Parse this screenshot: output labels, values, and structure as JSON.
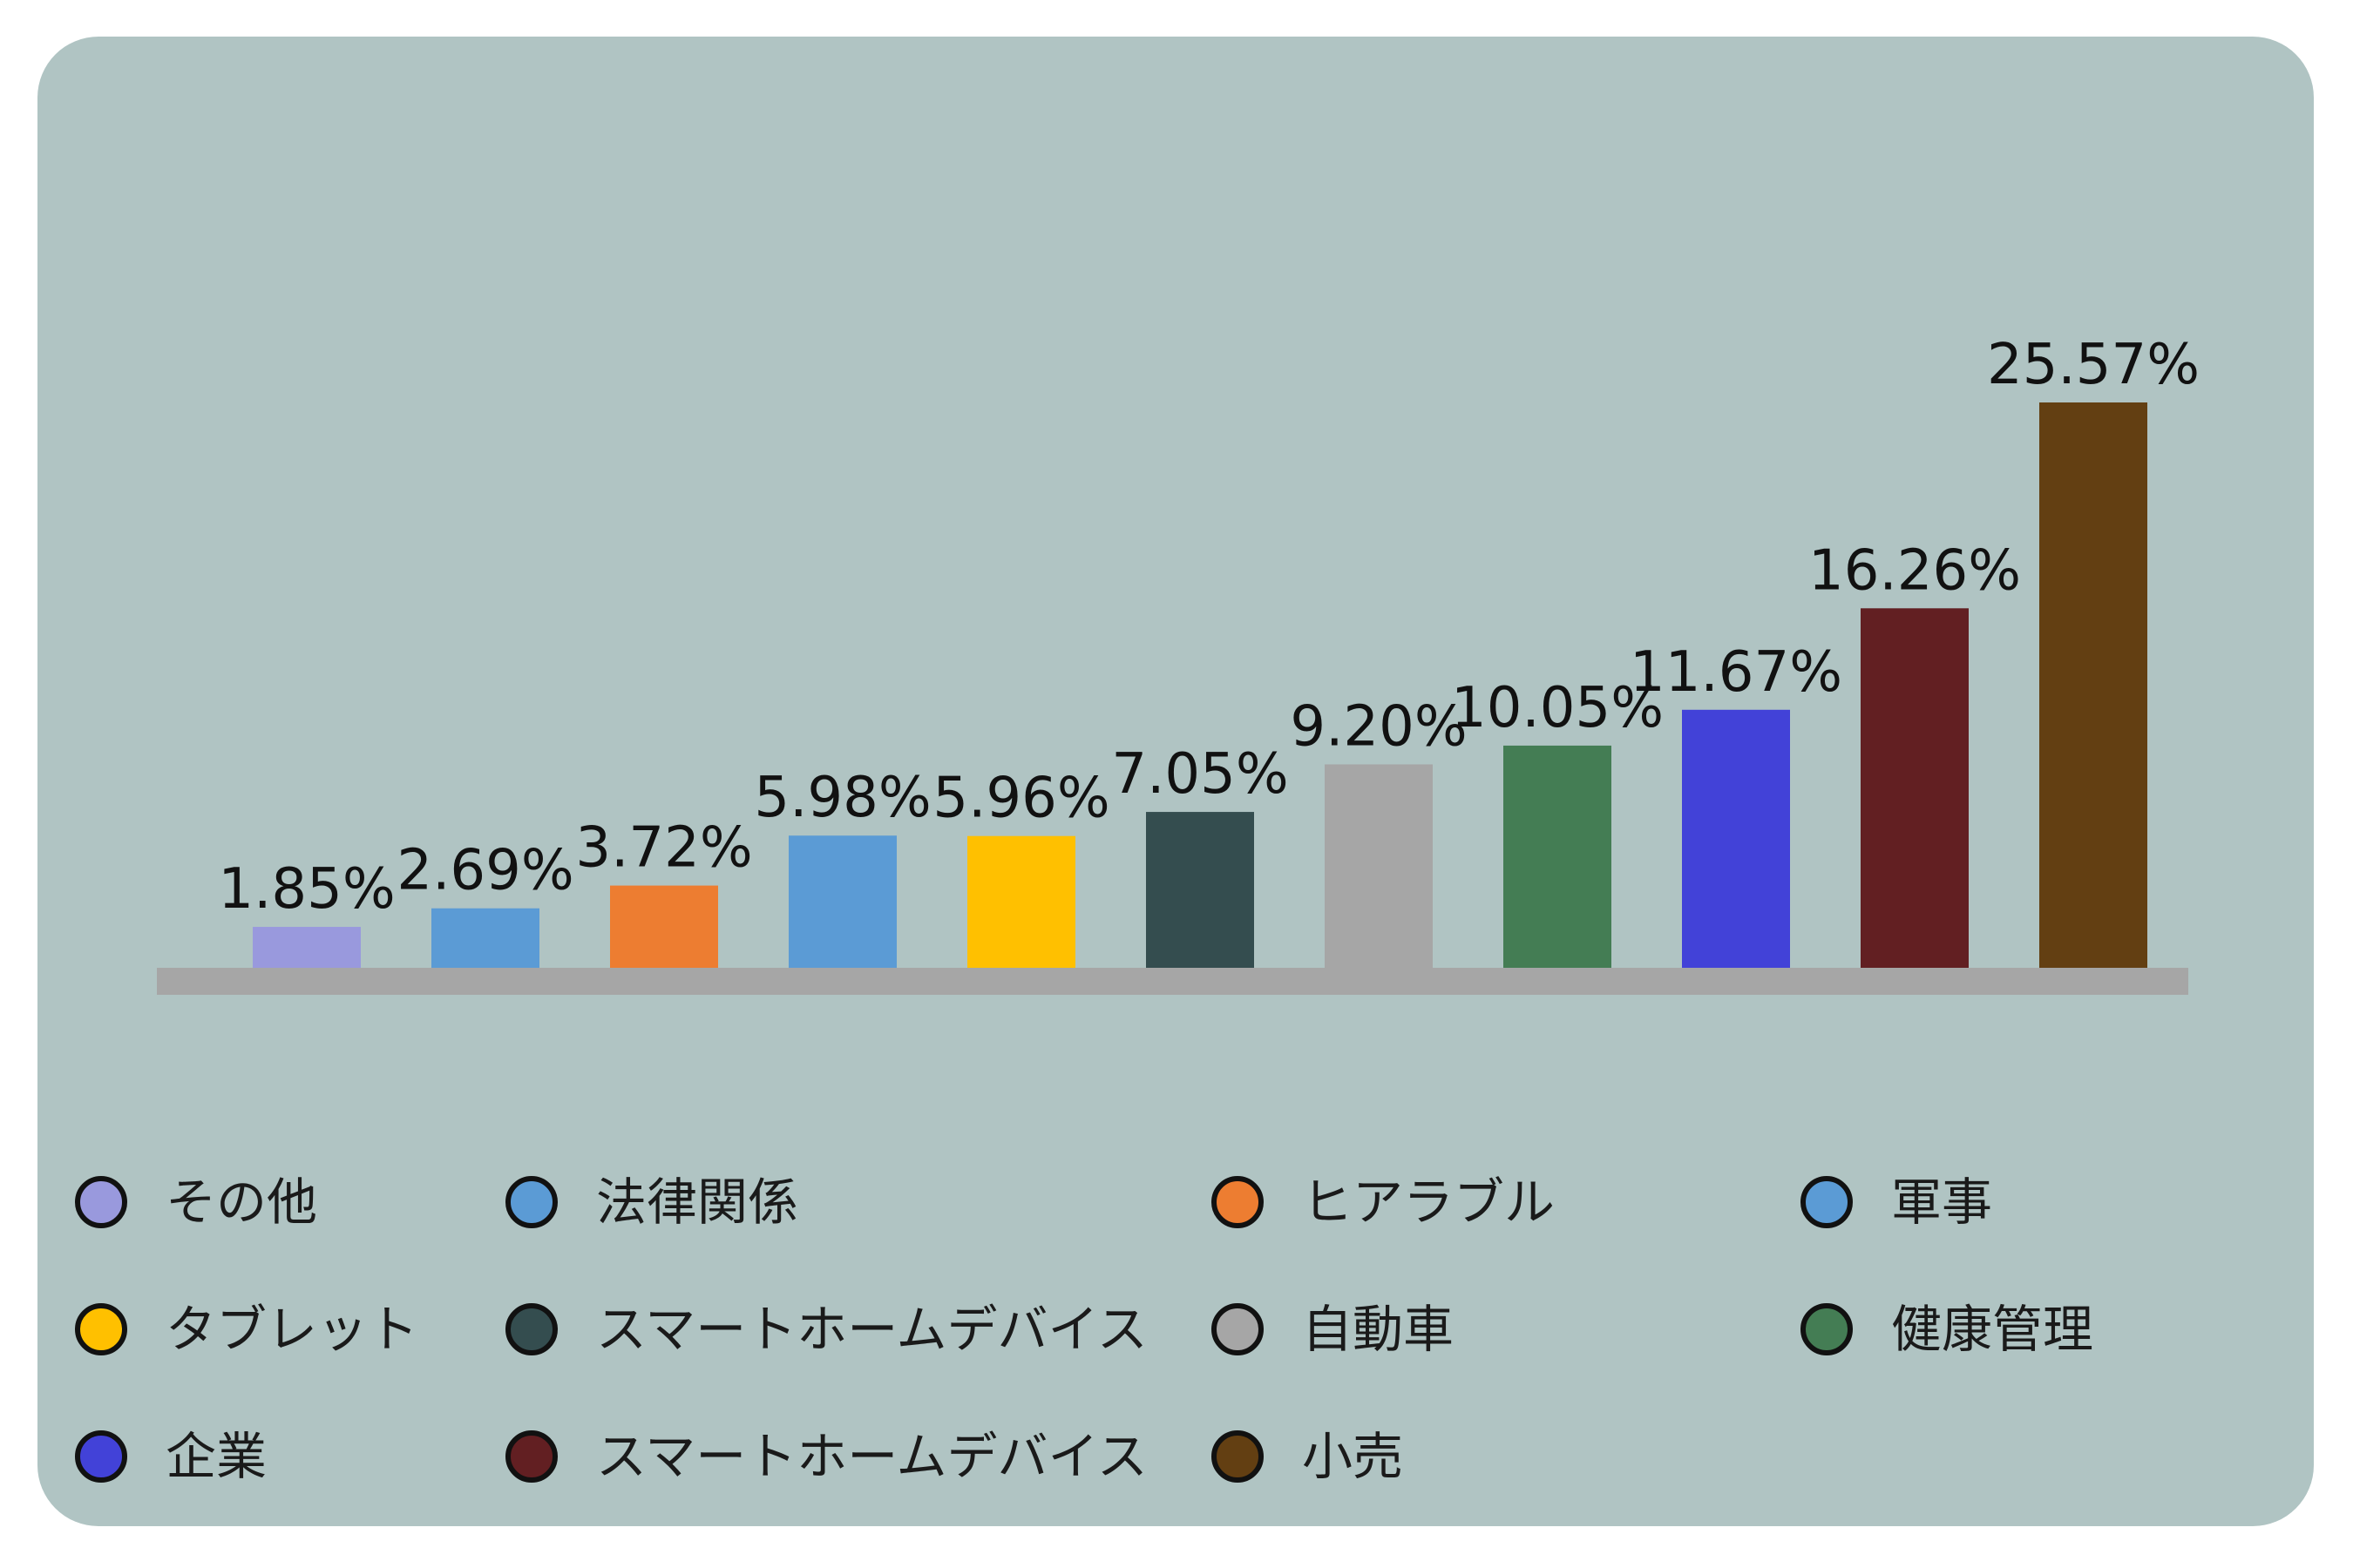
{
  "chart_data": {
    "type": "bar",
    "categories": [
      "その他",
      "法律関係",
      "ヒアラブル",
      "軍事",
      "タブレット",
      "スマートホームデバイス",
      "自動車",
      "健康管理",
      "企業",
      "スマートホームデバイス",
      "小売"
    ],
    "values": [
      1.85,
      2.69,
      3.72,
      5.98,
      5.96,
      7.05,
      9.2,
      10.05,
      11.67,
      16.26,
      25.57
    ],
    "value_labels": [
      "1.85%",
      "2.69%",
      "3.72%",
      "5.98%",
      "5.96%",
      "7.05%",
      "9.20%",
      "10.05%",
      "11.67%",
      "16.26%",
      "25.57%"
    ],
    "colors": [
      "#9999dd",
      "#5b9bd5",
      "#ed7d31",
      "#5b9bd5",
      "#ffc000",
      "#344d4f",
      "#a6a6a6",
      "#447d54",
      "#4242d8",
      "#621f22",
      "#633f12"
    ],
    "title": "",
    "xlabel": "",
    "ylabel": "",
    "ylim": [
      0,
      25.57
    ],
    "grid": false,
    "legend_position": "bottom",
    "background": "#b0c4c3",
    "baseline_color": "#a6a6a6"
  }
}
